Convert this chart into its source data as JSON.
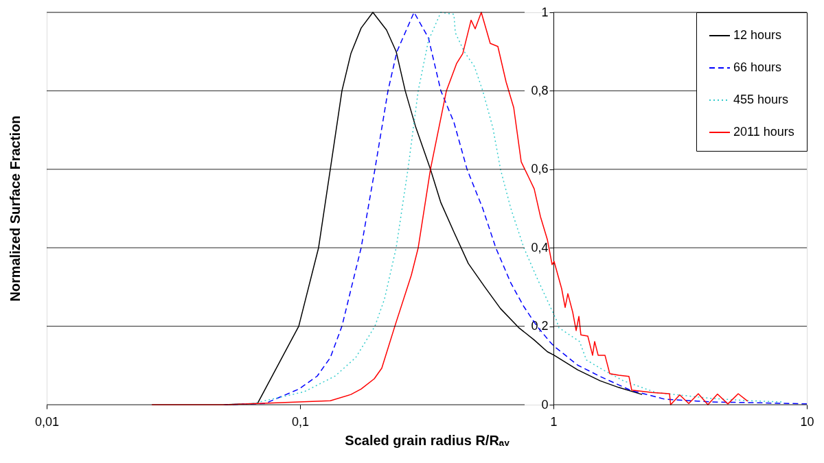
{
  "chart_data": {
    "type": "line",
    "xlabel": "Scaled grain radius R/Rₐᵥ",
    "ylabel": "Normalized Surface Fraction",
    "log": "x",
    "xlim": [
      0.01,
      10
    ],
    "xticks": [
      {
        "value": 0.01,
        "label": "0,01"
      },
      {
        "value": 0.1,
        "label": "0,1"
      },
      1,
      10
    ],
    "ylim": [
      0,
      1
    ],
    "yticks": [
      0,
      {
        "value": 0.2,
        "label": "0,2"
      },
      {
        "value": 0.4,
        "label": "0,4"
      },
      {
        "value": 0.6,
        "label": "0,6"
      },
      {
        "value": 0.8,
        "label": "0,8"
      },
      1
    ],
    "grid": "y",
    "legend": "top right",
    "marker": "none",
    "series": [
      {
        "name": "12 hours",
        "color": "#000000",
        "line_style": "solid",
        "x": [
          0.05,
          0.0679,
          0.0988,
          0.1183,
          0.1316,
          0.1463,
          0.1587,
          0.1742,
          0.1938,
          0.2194,
          0.2395,
          0.26,
          0.2853,
          0.327,
          0.3594,
          0.4047,
          0.4613,
          0.5358,
          0.618,
          0.7278,
          0.8395,
          0.946,
          1.006,
          1.245,
          1.528,
          1.808,
          2.237
        ],
        "values": [
          0,
          0.003,
          0.2,
          0.4,
          0.6,
          0.8,
          0.895,
          0.96,
          1,
          0.955,
          0.9,
          0.8,
          0.71,
          0.6,
          0.515,
          0.44,
          0.36,
          0.3,
          0.245,
          0.197,
          0.165,
          0.135,
          0.126,
          0.089,
          0.061,
          0.044,
          0.026
        ]
      },
      {
        "name": "66 hours",
        "color": "#0000ff",
        "line_style": "dashed",
        "x": [
          0.05,
          0.0727,
          0.099,
          0.1169,
          0.1316,
          0.1463,
          0.1742,
          0.1974,
          0.2223,
          0.2411,
          0.2817,
          0.321,
          0.3594,
          0.4047,
          0.456,
          0.526,
          0.592,
          0.679,
          0.764,
          0.861,
          0.969,
          1.006,
          1.245,
          1.528,
          2.012,
          2.748,
          4.2,
          6.38,
          10
        ],
        "values": [
          0,
          0.003,
          0.04,
          0.073,
          0.12,
          0.2,
          0.4,
          0.6,
          0.8,
          0.9,
          1,
          0.935,
          0.8,
          0.72,
          0.6,
          0.5,
          0.4,
          0.31,
          0.25,
          0.2,
          0.16,
          0.149,
          0.101,
          0.072,
          0.037,
          0.014,
          0.007,
          0.005,
          0.002
        ]
      },
      {
        "name": "455 hours",
        "color": "#33cccc",
        "line_style": "dotted",
        "x": [
          0.05,
          0.065,
          0.1038,
          0.1375,
          0.1658,
          0.1974,
          0.2155,
          0.2395,
          0.2665,
          0.2926,
          0.321,
          0.3594,
          0.4047,
          0.41,
          0.4444,
          0.4875,
          0.526,
          0.577,
          0.618,
          0.679,
          0.764,
          0.861,
          1.025,
          1.051,
          1.268,
          1.349,
          1.567,
          1.888,
          2.535,
          4.2,
          5.99,
          8.04
        ],
        "values": [
          0,
          0.003,
          0.033,
          0.073,
          0.12,
          0.2,
          0.27,
          0.4,
          0.6,
          0.8,
          0.928,
          1,
          0.995,
          0.948,
          0.9,
          0.862,
          0.8,
          0.705,
          0.6,
          0.5,
          0.4,
          0.323,
          0.217,
          0.196,
          0.161,
          0.114,
          0.089,
          0.061,
          0.031,
          0.016,
          0.01,
          0.007
        ]
      },
      {
        "name": "2011 hours",
        "color": "#ff0000",
        "line_style": "solid",
        "x": [
          0.026,
          0.0513,
          0.1316,
          0.1587,
          0.1742,
          0.1962,
          0.2101,
          0.2366,
          0.2748,
          0.2926,
          0.327,
          0.378,
          0.415,
          0.4386,
          0.473,
          0.491,
          0.519,
          0.563,
          0.6034,
          0.65,
          0.697,
          0.746,
          0.798,
          0.8395,
          0.888,
          0.946,
          0.988,
          1.006,
          1.078,
          1.112,
          1.14,
          1.191,
          1.229,
          1.26,
          1.283,
          1.366,
          1.427,
          1.454,
          1.501,
          1.597,
          1.668,
          1.809,
          1.986,
          2.037,
          2.455,
          2.871,
          2.9,
          3.15,
          3.42,
          3.73,
          4.07,
          4.44,
          4.88,
          5.36,
          5.84
        ],
        "values": [
          0,
          0,
          0.01,
          0.026,
          0.04,
          0.066,
          0.093,
          0.2,
          0.33,
          0.4,
          0.6,
          0.8,
          0.87,
          0.895,
          0.98,
          0.958,
          1,
          0.921,
          0.913,
          0.823,
          0.757,
          0.619,
          0.58,
          0.55,
          0.48,
          0.421,
          0.357,
          0.365,
          0.295,
          0.248,
          0.283,
          0.236,
          0.189,
          0.225,
          0.178,
          0.175,
          0.126,
          0.161,
          0.126,
          0.126,
          0.079,
          0.075,
          0.072,
          0.037,
          0.031,
          0.028,
          0,
          0.025,
          0.003,
          0.028,
          0,
          0.027,
          0.002,
          0.028,
          0.009
        ]
      }
    ]
  }
}
